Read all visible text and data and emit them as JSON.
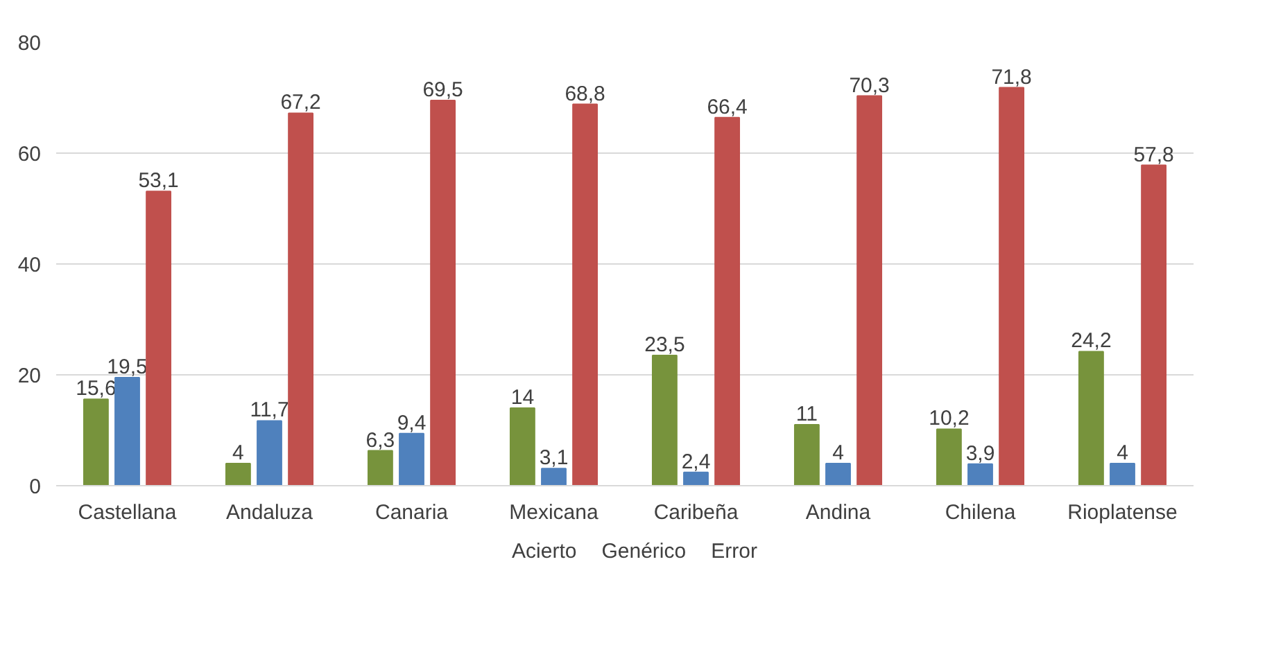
{
  "chart_data": {
    "type": "bar",
    "categories": [
      "Castellana",
      "Andaluza",
      "Canaria",
      "Mexicana",
      "Caribeña",
      "Andina",
      "Chilena",
      "Rioplatense"
    ],
    "series": [
      {
        "name": "Acierto",
        "color": "#77933c",
        "values": [
          15.6,
          4,
          6.3,
          14,
          23.5,
          11,
          10.2,
          24.2
        ],
        "value_labels": [
          "15,6",
          "4",
          "6,3",
          "14",
          "23,5",
          "11",
          "10,2",
          "24,2"
        ]
      },
      {
        "name": "Genérico",
        "color": "#4f81bd",
        "values": [
          19.5,
          11.7,
          9.4,
          3.1,
          2.4,
          4,
          3.9,
          4
        ],
        "value_labels": [
          "19,5",
          "11,7",
          "9,4",
          "3,1",
          "2,4",
          "4",
          "3,9",
          "4"
        ]
      },
      {
        "name": "Error",
        "color": "#c0504d",
        "values": [
          53.1,
          67.2,
          69.5,
          68.8,
          66.4,
          70.3,
          71.8,
          57.8
        ],
        "value_labels": [
          "53,1",
          "67,2",
          "69,5",
          "68,8",
          "66,4",
          "70,3",
          "71,8",
          "57,8"
        ]
      }
    ],
    "ylim": [
      0,
      80
    ],
    "yticks": [
      0,
      20,
      40,
      60,
      80
    ],
    "grid": "y",
    "legend": "bottom"
  }
}
